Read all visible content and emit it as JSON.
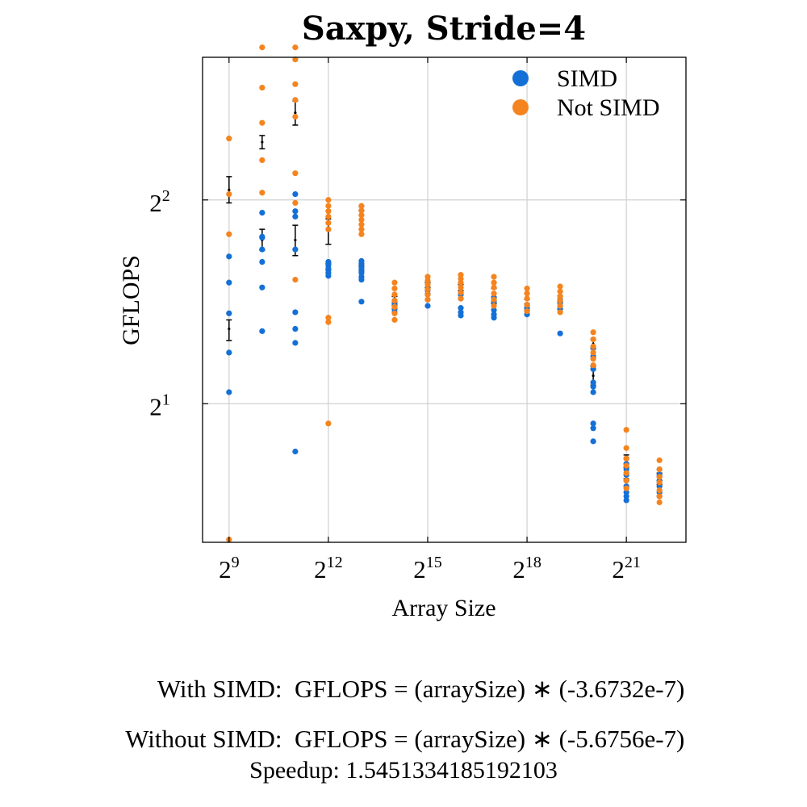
{
  "chart_data": {
    "type": "scatter",
    "title": "Saxpy, Stride=4",
    "xlabel": "Array Size",
    "ylabel": "GFLOPS",
    "x_scale": "log2",
    "y_scale": "log2",
    "xlim_log2": [
      8.2,
      22.8
    ],
    "ylim_log2": [
      0.32,
      2.7
    ],
    "x_ticks": [
      {
        "exp": 9,
        "base": "2",
        "sup": "9"
      },
      {
        "exp": 12,
        "base": "2",
        "sup": "12"
      },
      {
        "exp": 15,
        "base": "2",
        "sup": "15"
      },
      {
        "exp": 18,
        "base": "2",
        "sup": "18"
      },
      {
        "exp": 21,
        "base": "2",
        "sup": "21"
      }
    ],
    "y_ticks": [
      {
        "exp": 1,
        "base": "2",
        "sup": "1"
      },
      {
        "exp": 2,
        "base": "2",
        "sup": "2"
      }
    ],
    "grid": true,
    "legend_position": "top-right",
    "series": [
      {
        "name": "SIMD",
        "color": "#1470d6",
        "points": [
          [
            512,
            2.08
          ],
          [
            512,
            2.38
          ],
          [
            512,
            2.72
          ],
          [
            512,
            3.02
          ],
          [
            512,
            3.3
          ],
          [
            1024,
            2.56
          ],
          [
            1024,
            2.97
          ],
          [
            1024,
            3.24
          ],
          [
            1024,
            3.53
          ],
          [
            1024,
            3.38
          ],
          [
            1024,
            3.52
          ],
          [
            1024,
            3.83
          ],
          [
            2048,
            1.7
          ],
          [
            2048,
            2.46
          ],
          [
            2048,
            2.58
          ],
          [
            2048,
            2.73
          ],
          [
            2048,
            3.38
          ],
          [
            2048,
            3.78
          ],
          [
            2048,
            3.85
          ],
          [
            2048,
            4.08
          ],
          [
            4096,
            3.09
          ],
          [
            4096,
            3.12
          ],
          [
            4096,
            3.15
          ],
          [
            4096,
            3.17
          ],
          [
            4096,
            3.2
          ],
          [
            4096,
            3.22
          ],
          [
            4096,
            3.24
          ],
          [
            8192,
            2.83
          ],
          [
            8192,
            3.05
          ],
          [
            8192,
            3.08
          ],
          [
            8192,
            3.12
          ],
          [
            8192,
            3.15
          ],
          [
            8192,
            3.18
          ],
          [
            8192,
            3.22
          ],
          [
            8192,
            3.25
          ],
          [
            16384,
            2.73
          ],
          [
            16384,
            2.76
          ],
          [
            16384,
            2.79
          ],
          [
            16384,
            2.81
          ],
          [
            16384,
            2.84
          ],
          [
            32768,
            2.79
          ],
          [
            32768,
            2.85
          ],
          [
            32768,
            2.9
          ],
          [
            32768,
            2.94
          ],
          [
            65536,
            2.7
          ],
          [
            65536,
            2.73
          ],
          [
            65536,
            2.77
          ],
          [
            65536,
            2.86
          ],
          [
            65536,
            2.9
          ],
          [
            131072,
            2.68
          ],
          [
            131072,
            2.71
          ],
          [
            131072,
            2.75
          ],
          [
            131072,
            2.83
          ],
          [
            131072,
            2.87
          ],
          [
            262144,
            2.71
          ],
          [
            262144,
            2.74
          ],
          [
            262144,
            2.77
          ],
          [
            262144,
            2.8
          ],
          [
            524288,
            2.54
          ],
          [
            524288,
            2.76
          ],
          [
            524288,
            2.79
          ],
          [
            524288,
            2.82
          ],
          [
            524288,
            2.85
          ],
          [
            1048576,
            1.76
          ],
          [
            1048576,
            1.84
          ],
          [
            1048576,
            1.87
          ],
          [
            1048576,
            2.08
          ],
          [
            1048576,
            2.12
          ],
          [
            1048576,
            2.15
          ],
          [
            1048576,
            2.25
          ],
          [
            1048576,
            2.35
          ],
          [
            1048576,
            2.42
          ],
          [
            2097152,
            1.44
          ],
          [
            2097152,
            1.46
          ],
          [
            2097152,
            1.48
          ],
          [
            2097152,
            1.51
          ],
          [
            2097152,
            1.54
          ],
          [
            2097152,
            1.57
          ],
          [
            2097152,
            1.6
          ],
          [
            2097152,
            1.63
          ],
          [
            2097152,
            1.66
          ],
          [
            4194304,
            1.46
          ],
          [
            4194304,
            1.48
          ],
          [
            4194304,
            1.51
          ],
          [
            4194304,
            1.54
          ],
          [
            4194304,
            1.57
          ],
          [
            4194304,
            1.6
          ]
        ]
      },
      {
        "name": "Not SIMD",
        "color": "#f5841f",
        "points": [
          [
            512,
            1.26
          ],
          [
            512,
            3.56
          ],
          [
            512,
            4.08
          ],
          [
            512,
            4.93
          ],
          [
            1024,
            4.1
          ],
          [
            1024,
            4.58
          ],
          [
            1024,
            5.2
          ],
          [
            1024,
            5.86
          ],
          [
            1024,
            6.72
          ],
          [
            2048,
            3.05
          ],
          [
            2048,
            3.96
          ],
          [
            2048,
            4.38
          ],
          [
            2048,
            5.31
          ],
          [
            2048,
            5.62
          ],
          [
            2048,
            5.93
          ],
          [
            2048,
            6.45
          ],
          [
            2048,
            6.72
          ],
          [
            4096,
            1.87
          ],
          [
            4096,
            2.64
          ],
          [
            4096,
            2.68
          ],
          [
            4096,
            3.62
          ],
          [
            4096,
            3.7
          ],
          [
            4096,
            3.78
          ],
          [
            4096,
            3.85
          ],
          [
            4096,
            3.92
          ],
          [
            4096,
            4.0
          ],
          [
            8192,
            3.56
          ],
          [
            8192,
            3.62
          ],
          [
            8192,
            3.68
          ],
          [
            8192,
            3.74
          ],
          [
            8192,
            3.8
          ],
          [
            8192,
            3.86
          ],
          [
            8192,
            3.92
          ],
          [
            16384,
            2.66
          ],
          [
            16384,
            2.72
          ],
          [
            16384,
            2.78
          ],
          [
            16384,
            2.84
          ],
          [
            16384,
            2.9
          ],
          [
            16384,
            2.96
          ],
          [
            16384,
            3.02
          ],
          [
            32768,
            2.85
          ],
          [
            32768,
            2.9
          ],
          [
            32768,
            2.95
          ],
          [
            32768,
            3.0
          ],
          [
            32768,
            3.04
          ],
          [
            32768,
            3.08
          ],
          [
            65536,
            2.86
          ],
          [
            65536,
            2.92
          ],
          [
            65536,
            2.97
          ],
          [
            65536,
            3.02
          ],
          [
            65536,
            3.06
          ],
          [
            65536,
            3.1
          ],
          [
            131072,
            2.79
          ],
          [
            131072,
            2.85
          ],
          [
            131072,
            2.91
          ],
          [
            131072,
            2.97
          ],
          [
            131072,
            3.02
          ],
          [
            131072,
            3.08
          ],
          [
            262144,
            2.74
          ],
          [
            262144,
            2.8
          ],
          [
            262144,
            2.86
          ],
          [
            262144,
            2.91
          ],
          [
            262144,
            2.96
          ],
          [
            524288,
            2.73
          ],
          [
            524288,
            2.79
          ],
          [
            524288,
            2.84
          ],
          [
            524288,
            2.88
          ],
          [
            524288,
            2.93
          ],
          [
            524288,
            2.98
          ],
          [
            1048576,
            2.28
          ],
          [
            1048576,
            2.33
          ],
          [
            1048576,
            2.38
          ],
          [
            1048576,
            2.43
          ],
          [
            1048576,
            2.49
          ],
          [
            1048576,
            2.55
          ],
          [
            2097152,
            1.5
          ],
          [
            2097152,
            1.54
          ],
          [
            2097152,
            1.58
          ],
          [
            2097152,
            1.62
          ],
          [
            2097152,
            1.66
          ],
          [
            2097152,
            1.72
          ],
          [
            2097152,
            1.83
          ],
          [
            4194304,
            1.43
          ],
          [
            4194304,
            1.46
          ],
          [
            4194304,
            1.49
          ],
          [
            4194304,
            1.53
          ],
          [
            4194304,
            1.56
          ],
          [
            4194304,
            1.6
          ],
          [
            4194304,
            1.65
          ]
        ]
      }
    ],
    "error_bars": [
      {
        "x": 512,
        "center": 2.58,
        "low": 2.48,
        "high": 2.66
      },
      {
        "x": 512,
        "center": 4.14,
        "low": 3.96,
        "high": 4.33
      },
      {
        "x": 1024,
        "center": 3.49,
        "low": 3.37,
        "high": 3.62
      },
      {
        "x": 1024,
        "center": 4.87,
        "low": 4.76,
        "high": 4.98
      },
      {
        "x": 2048,
        "center": 3.49,
        "low": 3.31,
        "high": 3.67
      },
      {
        "x": 2048,
        "center": 5.38,
        "low": 5.16,
        "high": 5.6
      },
      {
        "x": 4096,
        "center": 3.6,
        "low": 3.44,
        "high": 3.75
      },
      {
        "x": 4096,
        "center": 3.18,
        "low": 3.15,
        "high": 3.22
      },
      {
        "x": 8192,
        "center": 3.17,
        "low": 3.14,
        "high": 3.2
      },
      {
        "x": 8192,
        "center": 3.88,
        "low": 3.85,
        "high": 3.91
      },
      {
        "x": 16384,
        "center": 2.78,
        "low": 2.76,
        "high": 2.8
      },
      {
        "x": 16384,
        "center": 2.85,
        "low": 2.82,
        "high": 2.88
      },
      {
        "x": 32768,
        "center": 2.94,
        "low": 2.91,
        "high": 2.97
      },
      {
        "x": 32768,
        "center": 2.99,
        "low": 2.96,
        "high": 3.02
      },
      {
        "x": 65536,
        "center": 2.89,
        "low": 2.86,
        "high": 2.92
      },
      {
        "x": 65536,
        "center": 2.97,
        "low": 2.94,
        "high": 3.0
      },
      {
        "x": 131072,
        "center": 2.84,
        "low": 2.81,
        "high": 2.87
      },
      {
        "x": 131072,
        "center": 2.99,
        "low": 2.96,
        "high": 3.02
      },
      {
        "x": 262144,
        "center": 2.78,
        "low": 2.75,
        "high": 2.81
      },
      {
        "x": 262144,
        "center": 2.88,
        "low": 2.85,
        "high": 2.91
      },
      {
        "x": 524288,
        "center": 2.79,
        "low": 2.76,
        "high": 2.82
      },
      {
        "x": 524288,
        "center": 2.86,
        "low": 2.83,
        "high": 2.89
      },
      {
        "x": 1048576,
        "center": 2.2,
        "low": 2.13,
        "high": 2.27
      },
      {
        "x": 1048576,
        "center": 2.45,
        "low": 2.41,
        "high": 2.49
      },
      {
        "x": 2097152,
        "center": 1.58,
        "low": 1.55,
        "high": 1.61
      },
      {
        "x": 2097152,
        "center": 1.65,
        "low": 1.63,
        "high": 1.68
      },
      {
        "x": 4194304,
        "center": 1.54,
        "low": 1.52,
        "high": 1.56
      },
      {
        "x": 4194304,
        "center": 1.56,
        "low": 1.54,
        "high": 1.58
      }
    ]
  },
  "formulas": [
    {
      "label": "With SIMD:",
      "expression": "GFLOPS = (arraySize) ∗ (-3.6732e-7)"
    },
    {
      "label": "Without SIMD:",
      "expression": "GFLOPS = (arraySize) ∗ (-5.6756e-7)"
    }
  ],
  "speedup": "Speedup: 1.5451334185192103"
}
